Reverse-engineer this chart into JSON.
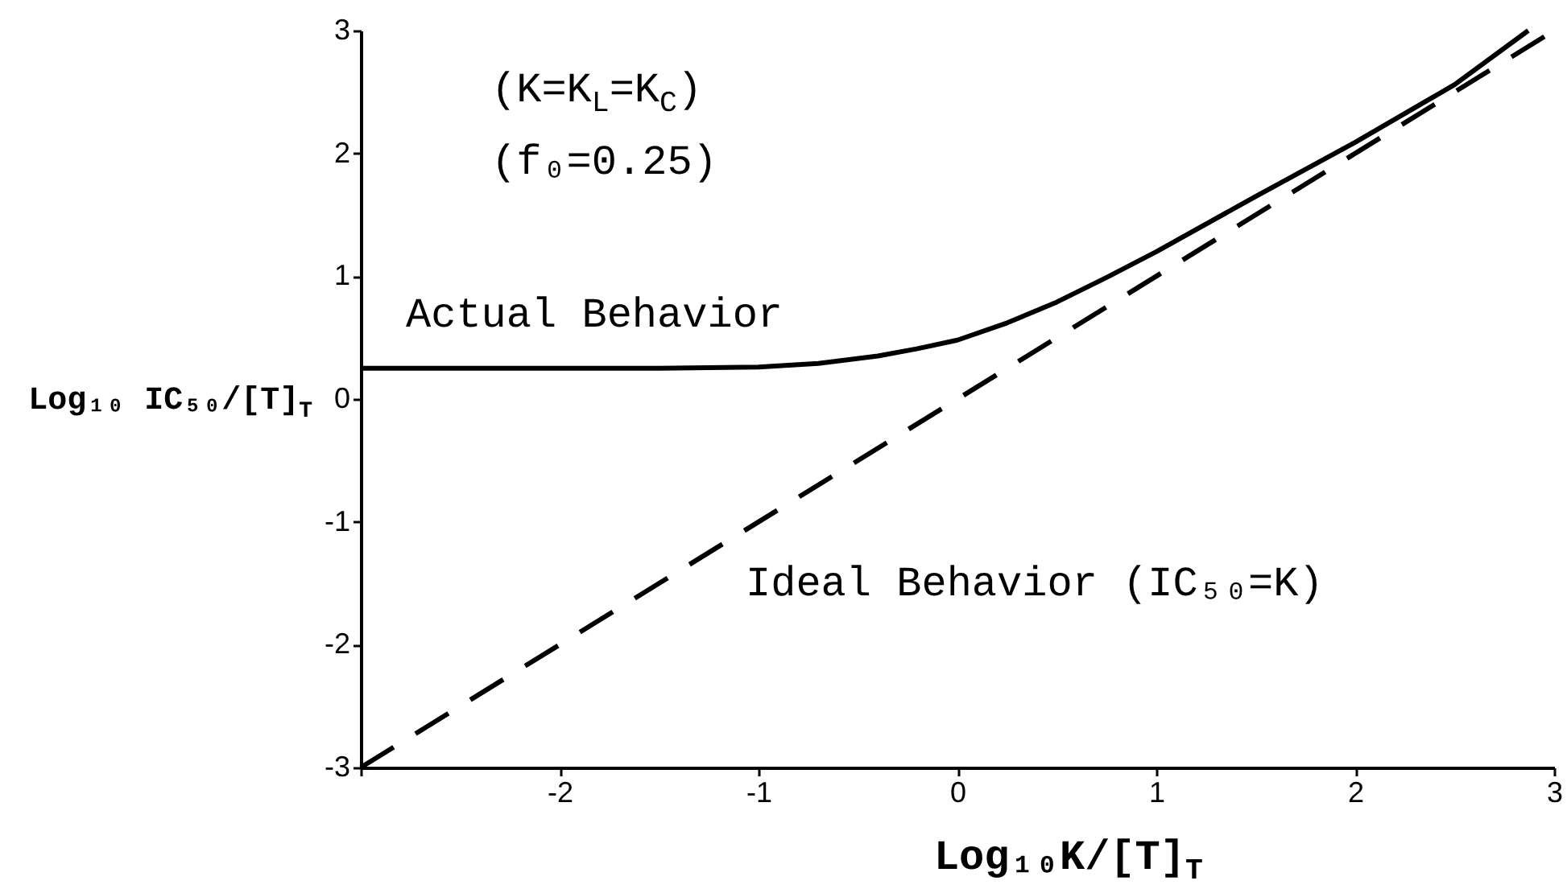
{
  "chart_data": {
    "type": "line",
    "xlabel": "Log₁₀K/[T]$_{T}$",
    "ylabel": "Log₁₀ IC₅₀/[T]$_{T}$",
    "annotations": [
      "(K=K$_{L}$=K$_{C}$)",
      "(f₀=0.25)"
    ],
    "xlim": [
      -3,
      3
    ],
    "ylim": [
      -3,
      3
    ],
    "xticks": [
      {
        "value": -3,
        "label": null
      },
      -2,
      -1,
      0,
      1,
      2,
      3
    ],
    "yticks": [
      -3,
      -2,
      -1,
      0,
      1,
      2,
      3
    ],
    "series": [
      {
        "name": "Actual Behavior",
        "color": "#000000",
        "line_style": "solid",
        "x": [
          -3,
          -2,
          -1.5,
          -1,
          -0.7,
          -0.4,
          -0.2,
          0,
          0.25,
          0.5,
          0.75,
          1,
          1.5,
          2,
          2.5,
          2.87
        ],
        "values": [
          0.25,
          0.25,
          0.25,
          0.26,
          0.29,
          0.35,
          0.41,
          0.48,
          0.62,
          0.79,
          0.99,
          1.2,
          1.65,
          2.09,
          2.56,
          3.0
        ]
      },
      {
        "name": "Ideal Behavior (IC₅₀=K)",
        "color": "#000000",
        "line_style": "dashed",
        "x": [
          -3,
          3
        ],
        "values": [
          -3,
          3
        ]
      }
    ]
  }
}
